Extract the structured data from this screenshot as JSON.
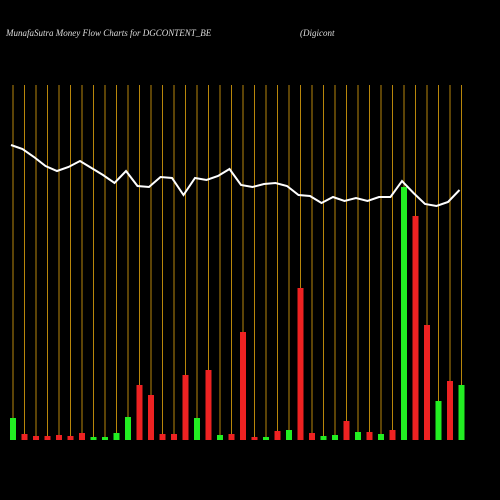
{
  "chart_data": {
    "type": "bar-line",
    "title": "MunafaSutra  Money Flow  Charts for DGCONTENT_BE",
    "subtitle": "(Digicont",
    "categories": [
      null,
      null,
      null,
      null,
      null,
      null,
      null,
      null,
      null,
      null,
      null,
      null,
      null,
      null,
      null,
      null,
      null,
      null,
      null,
      null,
      null,
      null,
      null,
      null,
      null,
      null,
      null,
      null,
      null,
      null,
      null,
      null,
      null,
      null,
      null,
      null,
      null,
      null,
      null,
      null
    ],
    "values": [
      22,
      6,
      4,
      4,
      5,
      4,
      7,
      3,
      3,
      7,
      23,
      55,
      45,
      6,
      6,
      65,
      22,
      70,
      5,
      6,
      108,
      3,
      3,
      9,
      10,
      152,
      7,
      4,
      5,
      19,
      8,
      8,
      6,
      10,
      253,
      224,
      115,
      39,
      59,
      55
    ],
    "colors": [
      "#22ee22",
      "#ee2222",
      "#ee2222",
      "#ee2222",
      "#ee2222",
      "#ee2222",
      "#ee2222",
      "#22ee22",
      "#22ee22",
      "#22ee22",
      "#22ee22",
      "#ee2222",
      "#ee2222",
      "#ee2222",
      "#ee2222",
      "#ee2222",
      "#22ee22",
      "#ee2222",
      "#22ee22",
      "#ee2222",
      "#ee2222",
      "#ee2222",
      "#22ee22",
      "#ee2222",
      "#22ee22",
      "#ee2222",
      "#ee2222",
      "#22ee22",
      "#22ee22",
      "#ee2222",
      "#22ee22",
      "#ee2222",
      "#22ee22",
      "#ee2222",
      "#22ee22",
      "#ee2222",
      "#ee2222",
      "#22ee22",
      "#ee2222",
      "#22ee22"
    ],
    "line": {
      "color": "#ffffff",
      "values": [
        295,
        291,
        283,
        274,
        269,
        273,
        279,
        272,
        265,
        257,
        269,
        254,
        253,
        263,
        262,
        245,
        262,
        260,
        264,
        271,
        255,
        253,
        256,
        257,
        254,
        245,
        244,
        237,
        243,
        239,
        242,
        239,
        243,
        243,
        259,
        247,
        236,
        234,
        238,
        250
      ]
    },
    "grid_color": "#b8860b",
    "ylim": [
      0,
      360
    ]
  }
}
